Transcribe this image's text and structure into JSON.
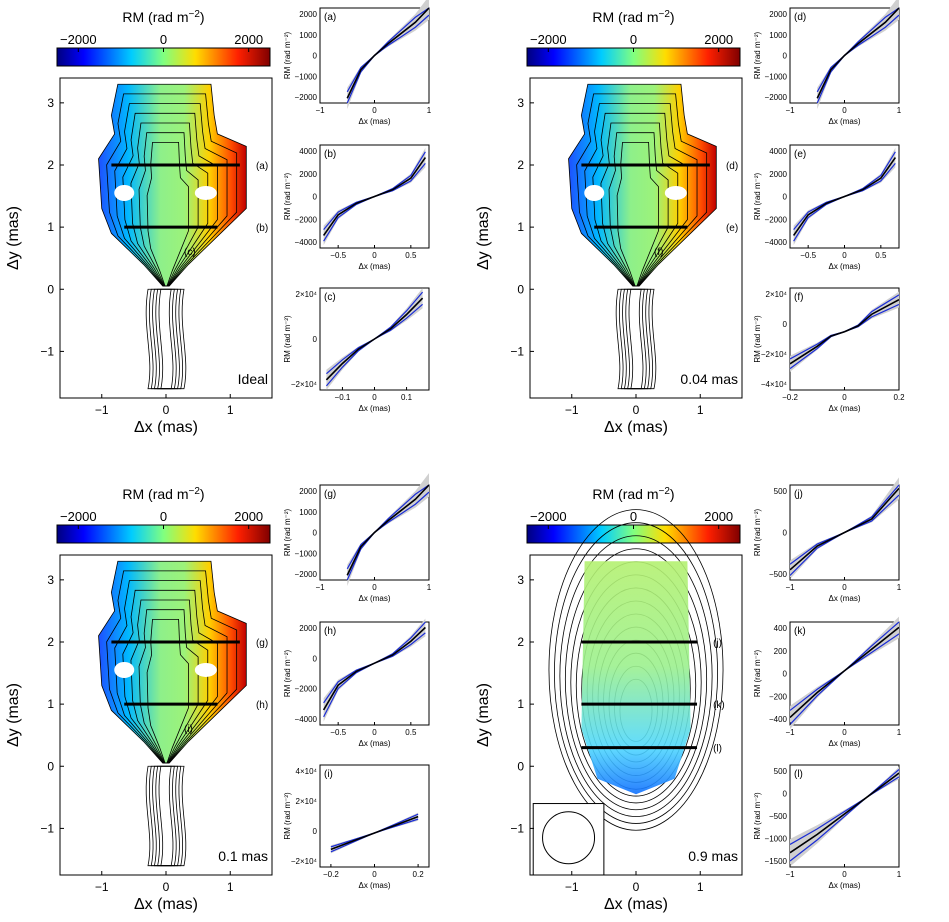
{
  "figure": {
    "colorbar": {
      "label": "RM (rad m",
      "label_sup": "−2",
      "label_close": ")",
      "ticks": [
        "−2000",
        "0",
        "2000"
      ],
      "range": [
        -2500,
        2500
      ]
    },
    "map_axes": {
      "xlabel": "Δx (mas)",
      "ylabel": "Δy (mas)",
      "xticks": [
        "−1",
        "0",
        "1"
      ],
      "yticks": [
        "−1",
        "0",
        "1",
        "2",
        "3"
      ],
      "xlim": [
        -1.65,
        1.65
      ],
      "ylim": [
        -1.75,
        3.4
      ]
    }
  },
  "chart_data": [
    {
      "type": "heatmap",
      "panel": "top-left",
      "resolution_label": "Ideal",
      "cut_labels": [
        "(a)",
        "(b)",
        "(c)"
      ],
      "subplots": [
        {
          "type": "line",
          "label": "(a)",
          "xlim": [
            -1,
            1
          ],
          "ylim": [
            -2000,
            2000
          ],
          "xticks": [
            "−1",
            "0",
            "1"
          ],
          "yticks": [
            "2000",
            "1000",
            "0",
            "−1000",
            "−2000"
          ],
          "xlabel": "Δx (mas)",
          "ylabel": "RM (rad m⁻²)",
          "model_x": [
            -0.5,
            -0.25,
            0,
            0.25,
            0.5,
            0.75,
            1
          ],
          "model_y": [
            -1800,
            -600,
            0,
            500,
            950,
            1400,
            2000
          ]
        },
        {
          "type": "line",
          "label": "(b)",
          "xlim": [
            -0.75,
            0.75
          ],
          "ylim": [
            -4500,
            4500
          ],
          "xticks": [
            "−0.5",
            "0",
            "0.5"
          ],
          "yticks": [
            "4000",
            "2000",
            "0",
            "−2000",
            "−4000"
          ],
          "xlabel": "Δx (mas)",
          "ylabel": "RM (rad m⁻²)",
          "model_x": [
            -0.7,
            -0.5,
            -0.25,
            0,
            0.25,
            0.5,
            0.7
          ],
          "model_y": [
            -3400,
            -1600,
            -600,
            0,
            600,
            1600,
            3400
          ]
        },
        {
          "type": "line",
          "label": "(c)",
          "xlim": [
            -0.17,
            0.17
          ],
          "ylim": [
            -25000,
            25000
          ],
          "xticks": [
            "−0.1",
            "0",
            "0.1"
          ],
          "yticks": [
            "2×10⁴",
            "0",
            "−2×10⁴"
          ],
          "xlabel": "Δx (mas)",
          "ylabel": "RM (rad m⁻²)",
          "model_x": [
            -0.15,
            -0.1,
            -0.05,
            0,
            0.05,
            0.1,
            0.15
          ],
          "model_y": [
            -20000,
            -12000,
            -5000,
            0,
            5000,
            12000,
            20000
          ]
        }
      ]
    },
    {
      "type": "heatmap",
      "panel": "top-right",
      "resolution_label": "0.04 mas",
      "cut_labels": [
        "(d)",
        "(e)",
        "(f)"
      ],
      "subplots": [
        {
          "type": "line",
          "label": "(d)",
          "xlim": [
            -1,
            1
          ],
          "ylim": [
            -2000,
            2000
          ],
          "xticks": [
            "−1",
            "0",
            "1"
          ],
          "yticks": [
            "2000",
            "1000",
            "0",
            "−1000",
            "−2000"
          ],
          "xlabel": "Δx (mas)",
          "ylabel": "RM (rad m⁻²)",
          "model_x": [
            -0.5,
            -0.25,
            0,
            0.25,
            0.5,
            0.75,
            1
          ],
          "model_y": [
            -1800,
            -600,
            0,
            500,
            950,
            1400,
            2000
          ]
        },
        {
          "type": "line",
          "label": "(e)",
          "xlim": [
            -0.75,
            0.75
          ],
          "ylim": [
            -4500,
            4500
          ],
          "xticks": [
            "−0.5",
            "0",
            "0.5"
          ],
          "yticks": [
            "4000",
            "2000",
            "0",
            "−2000",
            "−4000"
          ],
          "xlabel": "Δx (mas)",
          "ylabel": "RM (rad m⁻²)",
          "model_x": [
            -0.7,
            -0.5,
            -0.25,
            0,
            0.25,
            0.5,
            0.7
          ],
          "model_y": [
            -3400,
            -1600,
            -600,
            0,
            600,
            1600,
            3400
          ]
        },
        {
          "type": "line",
          "label": "(f)",
          "xlim": [
            -0.2,
            0.2
          ],
          "ylim": [
            -40000,
            30000
          ],
          "xticks": [
            "−0.2",
            "0",
            "0.2"
          ],
          "yticks": [
            "2×10⁴",
            "0",
            "−2×10⁴",
            "−4×10⁴"
          ],
          "xlabel": "Δx (mas)",
          "ylabel": "RM (rad m⁻²)",
          "model_x": [
            -0.2,
            -0.1,
            -0.05,
            0,
            0.05,
            0.1,
            0.2
          ],
          "model_y": [
            -22000,
            -10000,
            -3000,
            0,
            4000,
            12000,
            22000
          ]
        }
      ]
    },
    {
      "type": "heatmap",
      "panel": "bottom-left",
      "resolution_label": "0.1 mas",
      "cut_labels": [
        "(g)",
        "(h)",
        "(i)"
      ],
      "subplots": [
        {
          "type": "line",
          "label": "(g)",
          "xlim": [
            -1,
            1
          ],
          "ylim": [
            -2000,
            2000
          ],
          "xticks": [
            "−1",
            "0",
            "1"
          ],
          "yticks": [
            "2000",
            "1000",
            "0",
            "−1000",
            "−2000"
          ],
          "xlabel": "Δx (mas)",
          "ylabel": "RM (rad m⁻²)",
          "model_x": [
            -0.5,
            -0.25,
            0,
            0.25,
            0.5,
            0.75,
            1
          ],
          "model_y": [
            -1800,
            -600,
            0,
            500,
            950,
            1400,
            2000
          ]
        },
        {
          "type": "line",
          "label": "(h)",
          "xlim": [
            -0.75,
            0.75
          ],
          "ylim": [
            -4500,
            3000
          ],
          "xticks": [
            "−0.5",
            "0",
            "0.5"
          ],
          "yticks": [
            "2000",
            "0",
            "−2000",
            "−4000"
          ],
          "xlabel": "Δx (mas)",
          "ylabel": "RM (rad m⁻²)",
          "model_x": [
            -0.7,
            -0.5,
            -0.25,
            0,
            0.25,
            0.5,
            0.7
          ],
          "model_y": [
            -3400,
            -1600,
            -600,
            0,
            600,
            1600,
            2600
          ]
        },
        {
          "type": "line",
          "label": "(i)",
          "xlim": [
            -0.25,
            0.25
          ],
          "ylim": [
            -25000,
            50000
          ],
          "xticks": [
            "−0.2",
            "0",
            "0.2"
          ],
          "yticks": [
            "4×10⁴",
            "2×10⁴",
            "0",
            "−2×10⁴"
          ],
          "xlabel": "Δx (mas)",
          "ylabel": "RM (rad m⁻²)",
          "model_x": [
            -0.2,
            -0.1,
            0,
            0.1,
            0.2
          ],
          "model_y": [
            -12000,
            -6000,
            0,
            6000,
            12000
          ]
        }
      ]
    },
    {
      "type": "heatmap",
      "panel": "bottom-right",
      "resolution_label": "0.9 mas",
      "cut_labels": [
        "(j)",
        "(k)",
        "(l)"
      ],
      "subplots": [
        {
          "type": "line",
          "label": "(j)",
          "xlim": [
            -1,
            1
          ],
          "ylim": [
            -700,
            700
          ],
          "xticks": [
            "−1",
            "0",
            "1"
          ],
          "yticks": [
            "500",
            "0",
            "−500"
          ],
          "xlabel": "Δx (mas)",
          "ylabel": "RM (rad m⁻²)",
          "model_x": [
            -1,
            -0.5,
            0,
            0.5,
            1
          ],
          "model_y": [
            -550,
            -200,
            0,
            200,
            650
          ]
        },
        {
          "type": "line",
          "label": "(k)",
          "xlim": [
            -1,
            1
          ],
          "ylim": [
            -500,
            450
          ],
          "xticks": [
            "−1",
            "0",
            "1"
          ],
          "yticks": [
            "400",
            "200",
            "0",
            "−200",
            "−400"
          ],
          "xlabel": "Δx (mas)",
          "ylabel": "RM (rad m⁻²)",
          "model_x": [
            -1,
            -0.5,
            0,
            0.5,
            1
          ],
          "model_y": [
            -430,
            -200,
            0,
            200,
            400
          ]
        },
        {
          "type": "line",
          "label": "(l)",
          "xlim": [
            -1,
            1
          ],
          "ylim": [
            -1700,
            800
          ],
          "xticks": [
            "−1",
            "0",
            "1"
          ],
          "yticks": [
            "500",
            "0",
            "−500",
            "−1000",
            "−1500"
          ],
          "xlabel": "Δx (mas)",
          "ylabel": "RM (rad m⁻²)",
          "model_x": [
            -1,
            -0.5,
            0,
            0.5,
            1
          ],
          "model_y": [
            -1350,
            -900,
            -400,
            100,
            600
          ]
        }
      ]
    }
  ]
}
